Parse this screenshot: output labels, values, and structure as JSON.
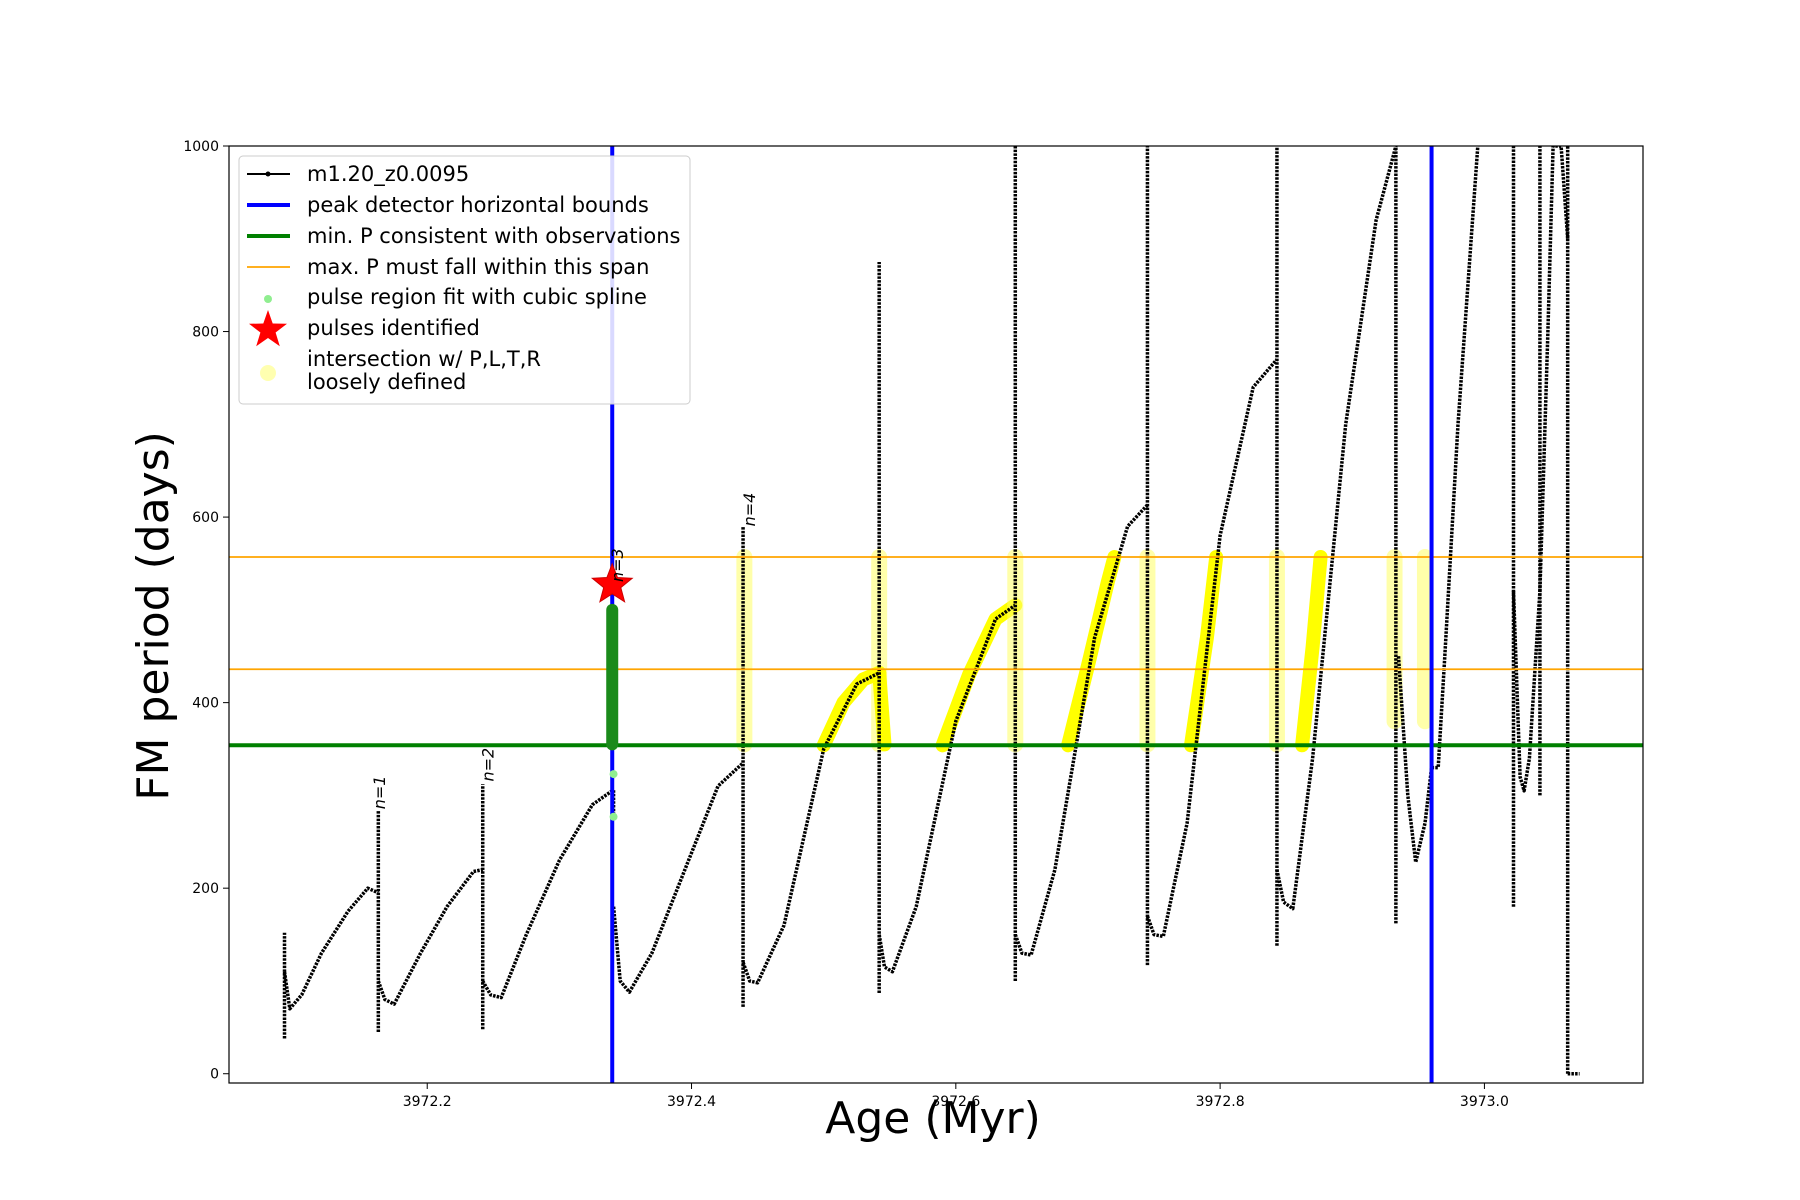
{
  "chart_data": {
    "type": "line",
    "title": "",
    "xlabel": "Age (Myr)",
    "ylabel": "FM period (days)",
    "xlim": [
      3972.05,
      3973.12
    ],
    "ylim": [
      -10,
      1000
    ],
    "x_ticks": [
      {
        "value": 3972.2,
        "label": "3972.2"
      },
      {
        "value": 3972.4,
        "label": "3972.4"
      },
      {
        "value": 3972.6,
        "label": "3972.6"
      },
      {
        "value": 3972.8,
        "label": "3972.8"
      },
      {
        "value": 3973.0,
        "label": "3973.0"
      }
    ],
    "y_ticks": [
      {
        "value": 0,
        "label": "0"
      },
      {
        "value": 200,
        "label": "200"
      },
      {
        "value": 400,
        "label": "400"
      },
      {
        "value": 600,
        "label": "600"
      },
      {
        "value": 800,
        "label": "800"
      },
      {
        "value": 1000,
        "label": "1000"
      }
    ],
    "grid": false,
    "legend_position": "top-left",
    "legend": [
      {
        "key": "model",
        "label": "m1.20_z0.0095",
        "color": "#000000",
        "kind": "line-marker"
      },
      {
        "key": "vbounds",
        "label": "peak detector horizontal bounds",
        "color": "#0000ff",
        "kind": "line"
      },
      {
        "key": "minP",
        "label": "min. P consistent with observations",
        "color": "#008000",
        "kind": "line"
      },
      {
        "key": "maxP",
        "label": "max. P must fall within this span",
        "color": "#ffa500",
        "kind": "thin-line"
      },
      {
        "key": "spline",
        "label": "pulse region fit with cubic spline",
        "color": "#90ee90",
        "kind": "dot"
      },
      {
        "key": "pulses",
        "label": "pulses identified",
        "color": "#ff0000",
        "kind": "star"
      },
      {
        "key": "intersection",
        "label": "intersection w/ P,L,T,R",
        "label2": "loosely defined",
        "color": "#ffffb0",
        "kind": "big-dot"
      }
    ],
    "vertical_lines": [
      3972.34,
      3972.96
    ],
    "min_P": 354,
    "max_P_span": [
      436,
      557
    ],
    "pulse_star": {
      "x": 3972.34,
      "y": 527
    },
    "annotations": [
      {
        "text": "n=1",
        "x": 3972.168,
        "y": 285
      },
      {
        "text": "n=2",
        "x": 3972.25,
        "y": 315
      },
      {
        "text": "n=3",
        "x": 3972.348,
        "y": 530
      },
      {
        "text": "n=4",
        "x": 3972.448,
        "y": 590
      }
    ],
    "series": [
      {
        "name": "m1.20_z0.0095",
        "color": "#000000",
        "spikes": [
          {
            "x": 3972.092,
            "lo": 38,
            "hi": 152
          },
          {
            "x": 3972.163,
            "lo": 45,
            "hi": 283
          },
          {
            "x": 3972.242,
            "lo": 48,
            "hi": 312
          },
          {
            "x": 3972.341,
            "lo": 275,
            "hi": 306
          },
          {
            "x": 3972.439,
            "lo": 72,
            "hi": 590
          },
          {
            "x": 3972.542,
            "lo": 87,
            "hi": 875
          },
          {
            "x": 3972.645,
            "lo": 100,
            "hi": 1000
          },
          {
            "x": 3972.745,
            "lo": 117,
            "hi": 1000
          },
          {
            "x": 3972.843,
            "lo": 138,
            "hi": 1000
          },
          {
            "x": 3972.933,
            "lo": 162,
            "hi": 1000
          },
          {
            "x": 3973.022,
            "lo": 180,
            "hi": 1000
          },
          {
            "x": 3973.042,
            "lo": 300,
            "hi": 1000
          },
          {
            "x": 3973.063,
            "lo": 0,
            "hi": 1000
          }
        ],
        "arcs": [
          {
            "x": [
              3972.092,
              3972.096,
              3972.105,
              3972.12,
              3972.14,
              3972.155,
              3972.163
            ],
            "y": [
              110,
              70,
              85,
              130,
              175,
              200,
              195
            ]
          },
          {
            "x": [
              3972.163,
              3972.168,
              3972.175,
              3972.195,
              3972.215,
              3972.235,
              3972.242
            ],
            "y": [
              100,
              80,
              75,
              130,
              180,
              218,
              220
            ]
          },
          {
            "x": [
              3972.242,
              3972.248,
              3972.256,
              3972.275,
              3972.3,
              3972.325,
              3972.341
            ],
            "y": [
              100,
              85,
              82,
              150,
              230,
              290,
              306
            ]
          },
          {
            "x": [
              3972.341,
              3972.346,
              3972.353,
              3972.37,
              3972.395,
              3972.42,
              3972.439
            ],
            "y": [
              180,
              100,
              88,
              130,
              220,
              310,
              335
            ]
          },
          {
            "x": [
              3972.439,
              3972.444,
              3972.45,
              3972.47,
              3972.5,
              3972.525,
              3972.542
            ],
            "y": [
              120,
              100,
              98,
              160,
              350,
              420,
              432
            ]
          },
          {
            "x": [
              3972.542,
              3972.546,
              3972.552,
              3972.57,
              3972.6,
              3972.63,
              3972.645
            ],
            "y": [
              150,
              115,
              110,
              180,
              380,
              490,
              505
            ]
          },
          {
            "x": [
              3972.645,
              3972.65,
              3972.657,
              3972.675,
              3972.705,
              3972.73,
              3972.745
            ],
            "y": [
              150,
              130,
              128,
              220,
              470,
              590,
              613
            ]
          },
          {
            "x": [
              3972.745,
              3972.75,
              3972.757,
              3972.775,
              3972.8,
              3972.825,
              3972.843
            ],
            "y": [
              170,
              150,
              148,
              270,
              580,
              740,
              770
            ]
          },
          {
            "x": [
              3972.843,
              3972.848,
              3972.855,
              3972.87,
              3972.895,
              3972.918,
              3972.933
            ],
            "y": [
              220,
              185,
              178,
              340,
              700,
              920,
              1000
            ]
          },
          {
            "x": [
              3972.96,
              3972.965,
              3972.97,
              3972.98,
              3972.995
            ],
            "y": [
              330,
              330,
              450,
              700,
              1000
            ]
          },
          {
            "x": [
              3972.935,
              3972.942,
              3972.948,
              3972.955,
              3972.96
            ],
            "y": [
              450,
              300,
              228,
              270,
              330
            ]
          },
          {
            "x": [
              3973.022,
              3973.027,
              3973.03,
              3973.034,
              3973.042
            ],
            "y": [
              520,
              320,
              305,
              340,
              520
            ]
          },
          {
            "x": [
              3973.042,
              3973.048,
              3973.052,
              3973.058,
              3973.063
            ],
            "y": [
              520,
              800,
              1000,
              1000,
              900
            ]
          },
          {
            "x": [
              3973.063,
              3973.065,
              3973.068,
              3973.072
            ],
            "y": [
              0,
              0,
              0,
              0
            ]
          }
        ]
      }
    ],
    "spline_fit": {
      "x": 3972.34,
      "lo": 355,
      "hi": 500,
      "extra_points": [
        {
          "x": 3972.341,
          "y": 323
        },
        {
          "x": 3972.341,
          "y": 277
        }
      ]
    },
    "intersection_regions": [
      {
        "kind": "vertical",
        "x": 3972.44,
        "lo": 355,
        "hi": 557
      },
      {
        "kind": "vertical",
        "x": 3972.542,
        "lo": 355,
        "hi": 557
      },
      {
        "kind": "arc",
        "x": [
          3972.5,
          3972.515,
          3972.53,
          3972.542
        ],
        "y": [
          354,
          400,
          425,
          432
        ]
      },
      {
        "kind": "arc",
        "x": [
          3972.542,
          3972.546
        ],
        "y": [
          432,
          355
        ]
      },
      {
        "kind": "arc",
        "x": [
          3972.59,
          3972.61,
          3972.63,
          3972.645
        ],
        "y": [
          354,
          430,
          490,
          505
        ]
      },
      {
        "kind": "vertical",
        "x": 3972.645,
        "lo": 355,
        "hi": 557
      },
      {
        "kind": "arc",
        "x": [
          3972.685,
          3972.7,
          3972.715,
          3972.72
        ],
        "y": [
          354,
          440,
          530,
          557
        ]
      },
      {
        "kind": "vertical",
        "x": 3972.745,
        "lo": 355,
        "hi": 557
      },
      {
        "kind": "arc",
        "x": [
          3972.778,
          3972.79,
          3972.797
        ],
        "y": [
          354,
          470,
          557
        ]
      },
      {
        "kind": "vertical",
        "x": 3972.843,
        "lo": 355,
        "hi": 557
      },
      {
        "kind": "arc",
        "x": [
          3972.862,
          3972.87,
          3972.876
        ],
        "y": [
          354,
          460,
          557
        ]
      },
      {
        "kind": "vertical",
        "x": 3972.932,
        "lo": 380,
        "hi": 557
      },
      {
        "kind": "vertical",
        "x": 3972.955,
        "lo": 380,
        "hi": 557
      }
    ]
  }
}
